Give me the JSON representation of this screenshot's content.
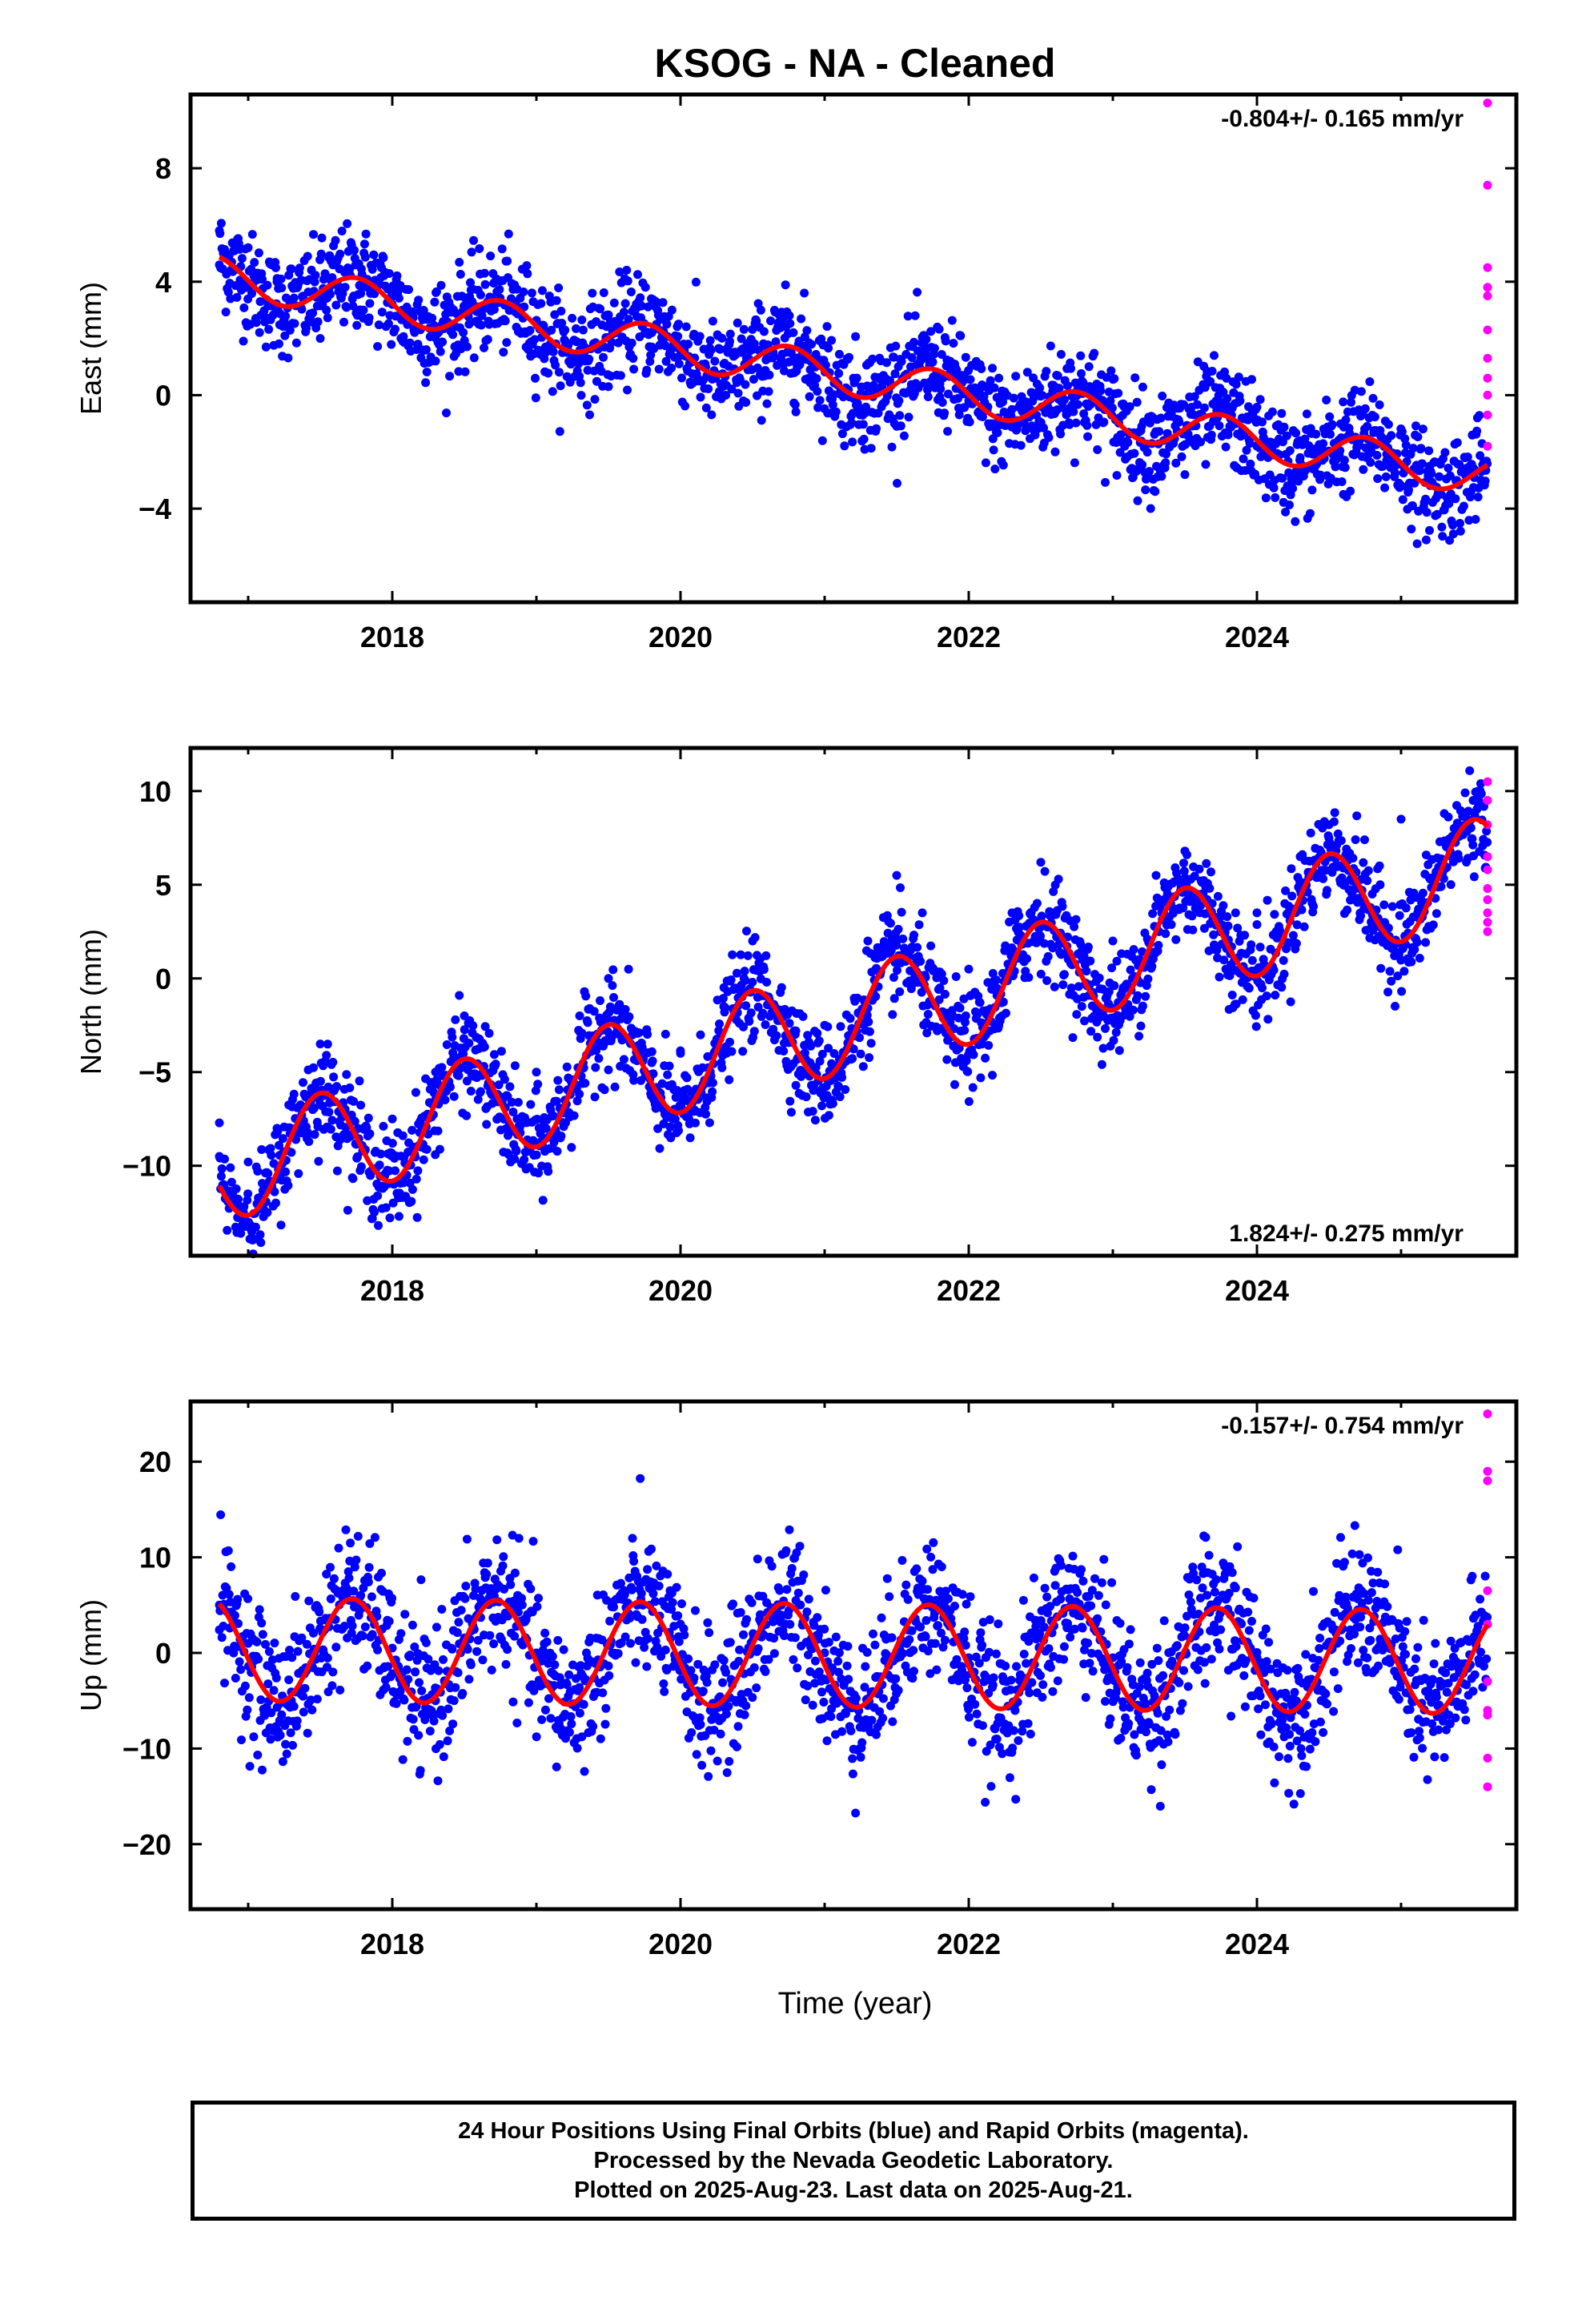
{
  "title": "KSOG  - NA - Cleaned",
  "x_axis_label": "Time (year)",
  "footer": {
    "line1": "24 Hour Positions Using Final Orbits (blue) and Rapid Orbits (magenta).",
    "line2": "Processed by the Nevada Geodetic Laboratory.",
    "line3": "Plotted on 2025-Aug-23. Last data on 2025-Aug-21."
  },
  "colors": {
    "final_orbits": "#0000ff",
    "rapid_orbits": "#ff00ff",
    "model_fit": "#ff0000",
    "frame": "#000000"
  },
  "chart_data": [
    {
      "type": "scatter",
      "component": "east",
      "ylabel": "East (mm)",
      "rate_text": "-0.804+/- 0.165 mm/yr",
      "rate_position": "top-right",
      "xlim": [
        2016.6,
        2025.8
      ],
      "ylim": [
        -7.3,
        10.6
      ],
      "x_ticks": [
        2018,
        2020,
        2022,
        2024
      ],
      "x_tick_labels": [
        "2018",
        "2020",
        "2022",
        "2024"
      ],
      "y_ticks": [
        8,
        4,
        0,
        -4
      ],
      "y_tick_labels": [
        "8",
        "4",
        "0",
        "−4"
      ],
      "grid": false,
      "model": {
        "name": "model fit",
        "start": 2016.8,
        "end": 2025.6,
        "offset_at_start": 4.2,
        "trend_mm_per_yr": -0.804,
        "annual_amplitude": 0.7,
        "annual_peak_phase": 0.75,
        "window_start_extra": 2016.95,
        "noise_mm": 1.1
      },
      "final_orbits": {
        "name": "Final Orbits",
        "x": [
          2016.8,
          2017.0,
          2017.2,
          2017.5,
          2017.8,
          2018.0,
          2018.3,
          2018.6,
          2018.9,
          2019.2,
          2019.5,
          2019.8,
          2020.0,
          2020.3,
          2020.6,
          2020.9,
          2021.2,
          2021.5,
          2021.8,
          2022.0,
          2022.3,
          2022.6,
          2022.9,
          2023.2,
          2023.5,
          2023.8,
          2024.0,
          2024.3,
          2024.6,
          2024.9,
          2025.2,
          2025.5
        ],
        "y": [
          5.8,
          5.2,
          4.0,
          2.0,
          3.0,
          3.2,
          1.2,
          2.5,
          2.2,
          1.9,
          0.3,
          1.7,
          1.4,
          1.1,
          -0.3,
          0.9,
          0.6,
          -1.1,
          0.4,
          -0.2,
          -0.5,
          -2.0,
          -0.8,
          -1.1,
          -2.8,
          -1.4,
          -1.8,
          -2.2,
          -3.5,
          -2.3,
          -2.5,
          -2.8
        ]
      },
      "rapid_orbits": {
        "name": "Rapid Orbits",
        "x": [
          2025.6,
          2025.6,
          2025.6,
          2025.6,
          2025.6,
          2025.6,
          2025.6,
          2025.6,
          2025.6,
          2025.6,
          2025.6
        ],
        "y": [
          10.3,
          7.4,
          4.5,
          3.8,
          3.5,
          2.3,
          1.3,
          0.6,
          0.0,
          -0.7,
          -1.8
        ]
      }
    },
    {
      "type": "scatter",
      "component": "north",
      "ylabel": "North (mm)",
      "rate_text": "1.824+/- 0.275 mm/yr",
      "rate_position": "bottom-right",
      "xlim": [
        2016.6,
        2025.8
      ],
      "ylim": [
        -14.8,
        12.3
      ],
      "x_ticks": [
        2018,
        2020,
        2022,
        2024
      ],
      "x_tick_labels": [
        "2018",
        "2020",
        "2022",
        "2024"
      ],
      "y_ticks": [
        10,
        5,
        0,
        -5,
        -10
      ],
      "y_tick_labels": [
        "10",
        "5",
        "0",
        "−5",
        "−10"
      ],
      "grid": false,
      "model": {
        "name": "model fit",
        "start": 2016.8,
        "end": 2025.6,
        "offset_at_start": -10.2,
        "trend_mm_per_yr": 1.824,
        "annual_amplitude": 2.8,
        "annual_peak_phase": 0.5,
        "noise_mm": 1.6
      },
      "final_orbits": {
        "name": "Final Orbits",
        "x": [
          2016.8,
          2017.0,
          2017.2,
          2017.5,
          2017.8,
          2018.0,
          2018.3,
          2018.5,
          2018.8,
          2019.0,
          2019.3,
          2019.5,
          2019.8,
          2020.0,
          2020.3,
          2020.5,
          2020.8,
          2021.0,
          2021.3,
          2021.5,
          2021.8,
          2022.0,
          2022.3,
          2022.5,
          2022.8,
          2023.0,
          2023.3,
          2023.5,
          2023.8,
          2024.0,
          2024.3,
          2024.5,
          2024.8,
          2025.0,
          2025.3,
          2025.5
        ],
        "y": [
          -9.5,
          -9.8,
          -8.0,
          -3.5,
          -8.0,
          -7.5,
          -5.0,
          -2.0,
          -6.3,
          -5.0,
          -2.0,
          0.0,
          -4.5,
          -4.0,
          -1.5,
          2.0,
          -2.8,
          -2.5,
          2.0,
          5.5,
          -0.5,
          0.5,
          3.5,
          6.2,
          1.2,
          2.0,
          5.5,
          6.8,
          2.8,
          3.5,
          6.5,
          8.2,
          4.5,
          8.5,
          8.8,
          9.5
        ]
      },
      "rapid_orbits": {
        "name": "Rapid Orbits",
        "x": [
          2025.6,
          2025.6,
          2025.6,
          2025.6,
          2025.6,
          2025.6,
          2025.6,
          2025.6,
          2025.6,
          2025.6
        ],
        "y": [
          10.5,
          9.5,
          8.2,
          6.5,
          5.8,
          4.8,
          4.2,
          3.5,
          3.0,
          2.5
        ]
      }
    },
    {
      "type": "scatter",
      "component": "up",
      "ylabel": "Up (mm)",
      "rate_text": "-0.157+/- 0.754 mm/yr",
      "rate_position": "top-right",
      "xlim": [
        2016.6,
        2025.8
      ],
      "ylim": [
        -26.8,
        26.3
      ],
      "x_ticks": [
        2018,
        2020,
        2022,
        2024
      ],
      "x_tick_labels": [
        "2018",
        "2020",
        "2022",
        "2024"
      ],
      "y_ticks": [
        20,
        10,
        0,
        -10,
        -20
      ],
      "y_tick_labels": [
        "20",
        "10",
        "0",
        "−10",
        "−20"
      ],
      "grid": false,
      "model": {
        "name": "model fit",
        "start": 2016.8,
        "end": 2025.6,
        "offset_at_start": 0.4,
        "trend_mm_per_yr": -0.157,
        "annual_amplitude": 5.4,
        "annual_peak_phase": 0.72,
        "noise_mm": 4.5
      },
      "final_orbits": {
        "name": "Final Orbits",
        "x": [
          2016.8,
          2017.0,
          2017.3,
          2017.7,
          2018.0,
          2018.3,
          2018.7,
          2019.0,
          2019.3,
          2019.7,
          2020.0,
          2020.3,
          2020.7,
          2021.0,
          2021.3,
          2021.7,
          2022.0,
          2022.3,
          2022.7,
          2023.0,
          2023.3,
          2023.7,
          2024.0,
          2024.3,
          2024.7,
          2025.0,
          2025.3,
          2025.5
        ],
        "y": [
          5.0,
          1.0,
          -5.0,
          5.5,
          0.5,
          -5.0,
          5.3,
          0.0,
          -5.2,
          5.0,
          -1.0,
          -5.3,
          5.0,
          0.0,
          -5.5,
          5.0,
          -0.5,
          -5.5,
          4.8,
          -0.5,
          -5.8,
          4.8,
          -0.5,
          -6.0,
          4.5,
          -3.0,
          -6.0,
          -4.0
        ]
      },
      "rapid_orbits": {
        "name": "Rapid Orbits",
        "x": [
          2025.6,
          2025.6,
          2025.6,
          2025.6,
          2025.6,
          2025.6,
          2025.6,
          2025.6,
          2025.6,
          2025.6
        ],
        "y": [
          25.0,
          19.0,
          18.0,
          6.5,
          3.0,
          -3.0,
          -6.0,
          -6.5,
          -11.0,
          -14.0
        ]
      }
    }
  ]
}
